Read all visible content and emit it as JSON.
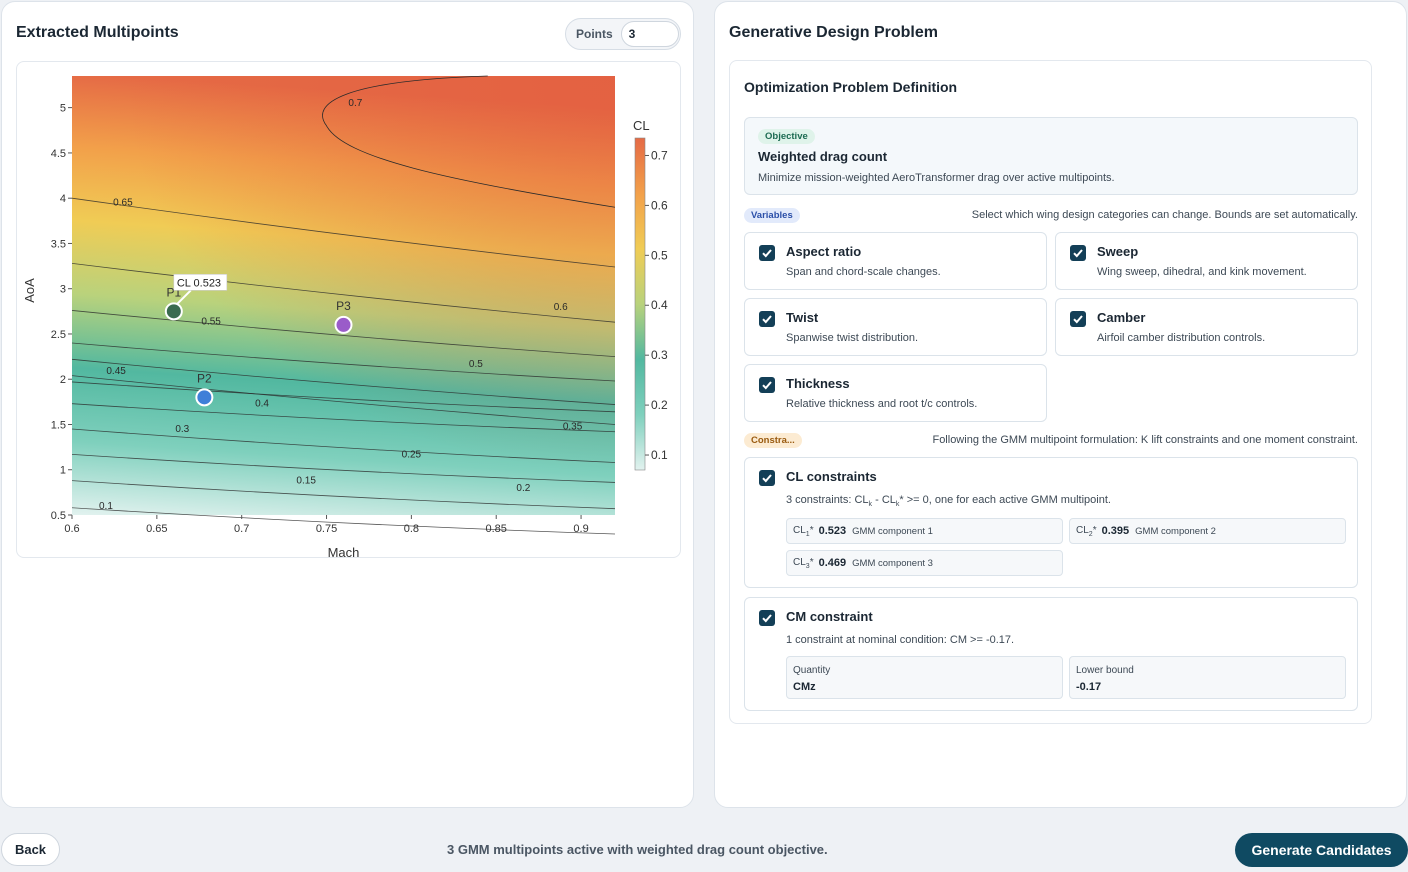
{
  "left_panel": {
    "title": "Extracted Multipoints",
    "points_label": "Points",
    "points_value": "3"
  },
  "chart_data": {
    "type": "contour",
    "xlabel": "Mach",
    "ylabel": "AoA",
    "colorbar_title": "CL",
    "xlim": [
      0.6,
      0.92
    ],
    "ylim": [
      0.5,
      5.35
    ],
    "x_ticks": [
      "0.6",
      "0.65",
      "0.7",
      "0.75",
      "0.8",
      "0.85",
      "0.9"
    ],
    "y_ticks": [
      "0.5",
      "1",
      "1.5",
      "2",
      "2.5",
      "3",
      "3.5",
      "4",
      "4.5",
      "5"
    ],
    "colorbar_ticks": [
      "0.1",
      "0.2",
      "0.3",
      "0.4",
      "0.5",
      "0.6",
      "0.7"
    ],
    "colorscale": [
      "#e2f2ef",
      "#7fd0bd",
      "#52b8a0",
      "#b9d27c",
      "#f0cc55",
      "#f2a04a",
      "#e56a45"
    ],
    "contour_levels": [
      "0.1",
      "0.15",
      "0.2",
      "0.25",
      "0.3",
      "0.35",
      "0.4",
      "0.45",
      "0.5",
      "0.55",
      "0.6",
      "0.65",
      "0.7"
    ],
    "points": [
      {
        "label": "P1",
        "mach": 0.66,
        "aoa": 2.75,
        "color": "#3a6b4f"
      },
      {
        "label": "P2",
        "mach": 0.678,
        "aoa": 1.8,
        "color": "#3f7fd8"
      },
      {
        "label": "P3",
        "mach": 0.76,
        "aoa": 2.6,
        "color": "#9a5cc9"
      }
    ],
    "hover_label": "CL 0.523"
  },
  "right_panel": {
    "title": "Generative Design Problem",
    "card_title": "Optimization Problem Definition",
    "objective": {
      "tag": "Objective",
      "title": "Weighted drag count",
      "description": "Minimize mission-weighted AeroTransformer drag over active multipoints."
    },
    "variables": {
      "tag": "Variables",
      "note": "Select which wing design categories can change. Bounds are set automatically.",
      "items": [
        {
          "title": "Aspect ratio",
          "desc": "Span and chord-scale changes."
        },
        {
          "title": "Sweep",
          "desc": "Wing sweep, dihedral, and kink movement."
        },
        {
          "title": "Twist",
          "desc": "Spanwise twist distribution."
        },
        {
          "title": "Camber",
          "desc": "Airfoil camber distribution controls."
        },
        {
          "title": "Thickness",
          "desc": "Relative thickness and root t/c controls."
        }
      ]
    },
    "constraints": {
      "tag": "Constra...",
      "note": "Following the GMM multipoint formulation: K lift constraints and one moment constraint.",
      "cl": {
        "title": "CL constraints",
        "desc_prefix": "3 constraints: CL",
        "desc_mid": " - CL",
        "desc_suffix": "* >= 0, one for each active GMM multipoint.",
        "sub_k": "k",
        "chips": [
          {
            "key": "CL",
            "sub": "1",
            "star": "*",
            "value": "0.523",
            "comp": "GMM component 1"
          },
          {
            "key": "CL",
            "sub": "2",
            "star": "*",
            "value": "0.395",
            "comp": "GMM component 2"
          },
          {
            "key": "CL",
            "sub": "3",
            "star": "*",
            "value": "0.469",
            "comp": "GMM component 3"
          }
        ]
      },
      "cm": {
        "title": "CM constraint",
        "desc": "1 constraint at nominal condition: CM >= -0.17.",
        "quantity_label": "Quantity",
        "quantity_value": "CMz",
        "bound_label": "Lower bound",
        "bound_value": "-0.17"
      }
    }
  },
  "footer": {
    "back_label": "Back",
    "status": "3 GMM multipoints active with weighted drag count objective.",
    "generate_label": "Generate Candidates"
  }
}
